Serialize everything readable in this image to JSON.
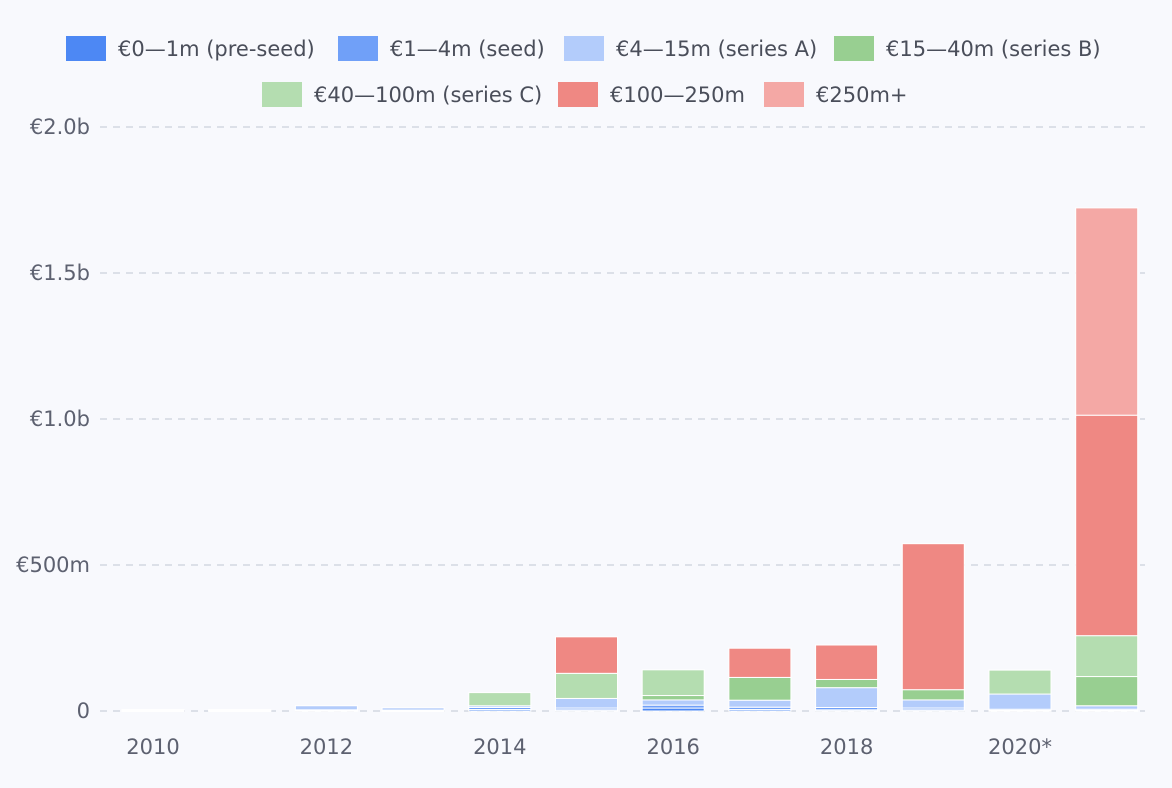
{
  "chart_data": {
    "type": "bar",
    "stacked": true,
    "categories": [
      "2010",
      "2011",
      "2012",
      "2013",
      "2014",
      "2015",
      "2016",
      "2017",
      "2018",
      "2019",
      "2020*",
      "2021"
    ],
    "x_tick_labels": [
      "2010",
      "2012",
      "2014",
      "2016",
      "2018",
      "2020*"
    ],
    "y_ticks": [
      {
        "value": 0,
        "label": "0"
      },
      {
        "value": 500,
        "label": "€500m"
      },
      {
        "value": 1000,
        "label": "€1.0b"
      },
      {
        "value": 1500,
        "label": "€1.5b"
      },
      {
        "value": 2000,
        "label": "€2.0b"
      }
    ],
    "ylim": [
      0,
      2000
    ],
    "y_unit": "€m",
    "grid": true,
    "legend_position": "top",
    "series": [
      {
        "name": "€0—1m (pre-seed)",
        "color": "#4d88f4",
        "values": [
          1,
          1,
          2,
          1,
          5,
          4,
          10,
          5,
          4,
          4,
          2,
          2
        ]
      },
      {
        "name": "€1—4m (seed)",
        "color": "#70a0f8",
        "values": [
          2,
          2,
          2,
          2,
          7,
          6,
          10,
          8,
          8,
          6,
          4,
          4
        ]
      },
      {
        "name": "€4—15m (series A)",
        "color": "#b3ccfb",
        "values": [
          2,
          2,
          14,
          8,
          6,
          33,
          18,
          24,
          68,
          28,
          52,
          12
        ]
      },
      {
        "name": "€15—40m (series B)",
        "color": "#98cf91",
        "values": [
          0,
          0,
          0,
          0,
          0,
          0,
          15,
          78,
          28,
          35,
          0,
          100
        ]
      },
      {
        "name": "€40—100m (series C)",
        "color": "#b4ddb0",
        "values": [
          0,
          0,
          0,
          0,
          45,
          86,
          88,
          0,
          0,
          0,
          82,
          140
        ]
      },
      {
        "name": "€100—250m",
        "color": "#ef8883",
        "values": [
          0,
          0,
          0,
          0,
          0,
          125,
          0,
          100,
          118,
          500,
          0,
          755
        ]
      },
      {
        "name": "€250m+",
        "color": "#f4a8a5",
        "values": [
          0,
          0,
          0,
          0,
          0,
          0,
          0,
          0,
          0,
          0,
          0,
          710
        ]
      }
    ]
  }
}
